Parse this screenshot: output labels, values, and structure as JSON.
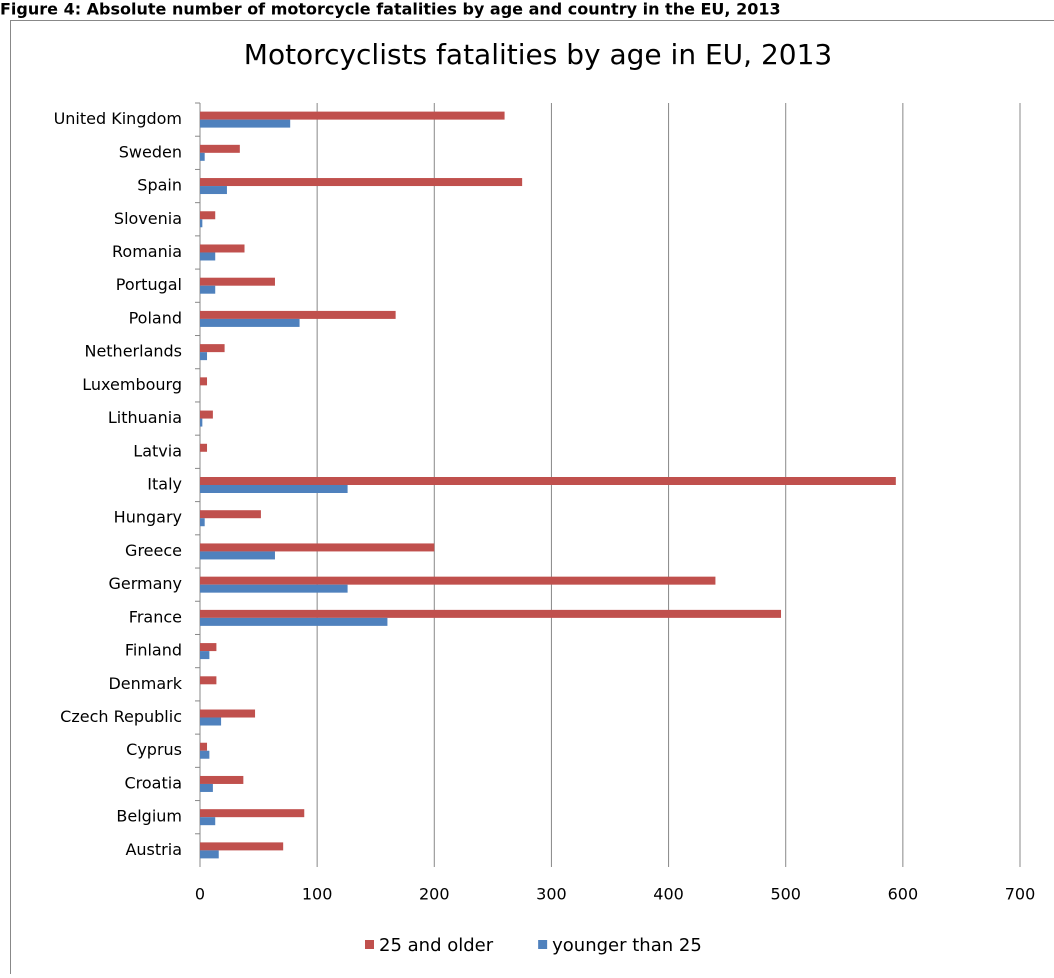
{
  "caption": "Figure 4: Absolute number of motorcycle fatalities by age and country in the EU, 2013",
  "chart_data": {
    "type": "bar",
    "orientation": "horizontal",
    "title": "Motorcyclists fatalities by age in EU, 2013",
    "categories": [
      "United Kingdom",
      "Sweden",
      "Spain",
      "Slovenia",
      "Romania",
      "Portugal",
      "Poland",
      "Netherlands",
      "Luxembourg",
      "Lithuania",
      "Latvia",
      "Italy",
      "Hungary",
      "Greece",
      "Germany",
      "France",
      "Finland",
      "Denmark",
      "Czech Republic",
      "Cyprus",
      "Croatia",
      "Belgium",
      "Austria"
    ],
    "series": [
      {
        "name": "25 and older",
        "color": "#c0504d",
        "values": [
          260,
          34,
          275,
          13,
          38,
          64,
          167,
          21,
          6,
          11,
          6,
          594,
          52,
          200,
          440,
          496,
          14,
          14,
          47,
          6,
          37,
          89,
          71
        ]
      },
      {
        "name": "younger than 25",
        "color": "#4f81bd",
        "values": [
          77,
          4,
          23,
          2,
          13,
          13,
          85,
          6,
          0,
          2,
          0,
          126,
          4,
          64,
          126,
          160,
          8,
          0,
          18,
          8,
          11,
          13,
          16
        ]
      }
    ],
    "xlim": [
      0,
      700
    ],
    "xticks": [
      0,
      100,
      200,
      300,
      400,
      500,
      600,
      700
    ],
    "grid": true,
    "legend": "bottom"
  }
}
